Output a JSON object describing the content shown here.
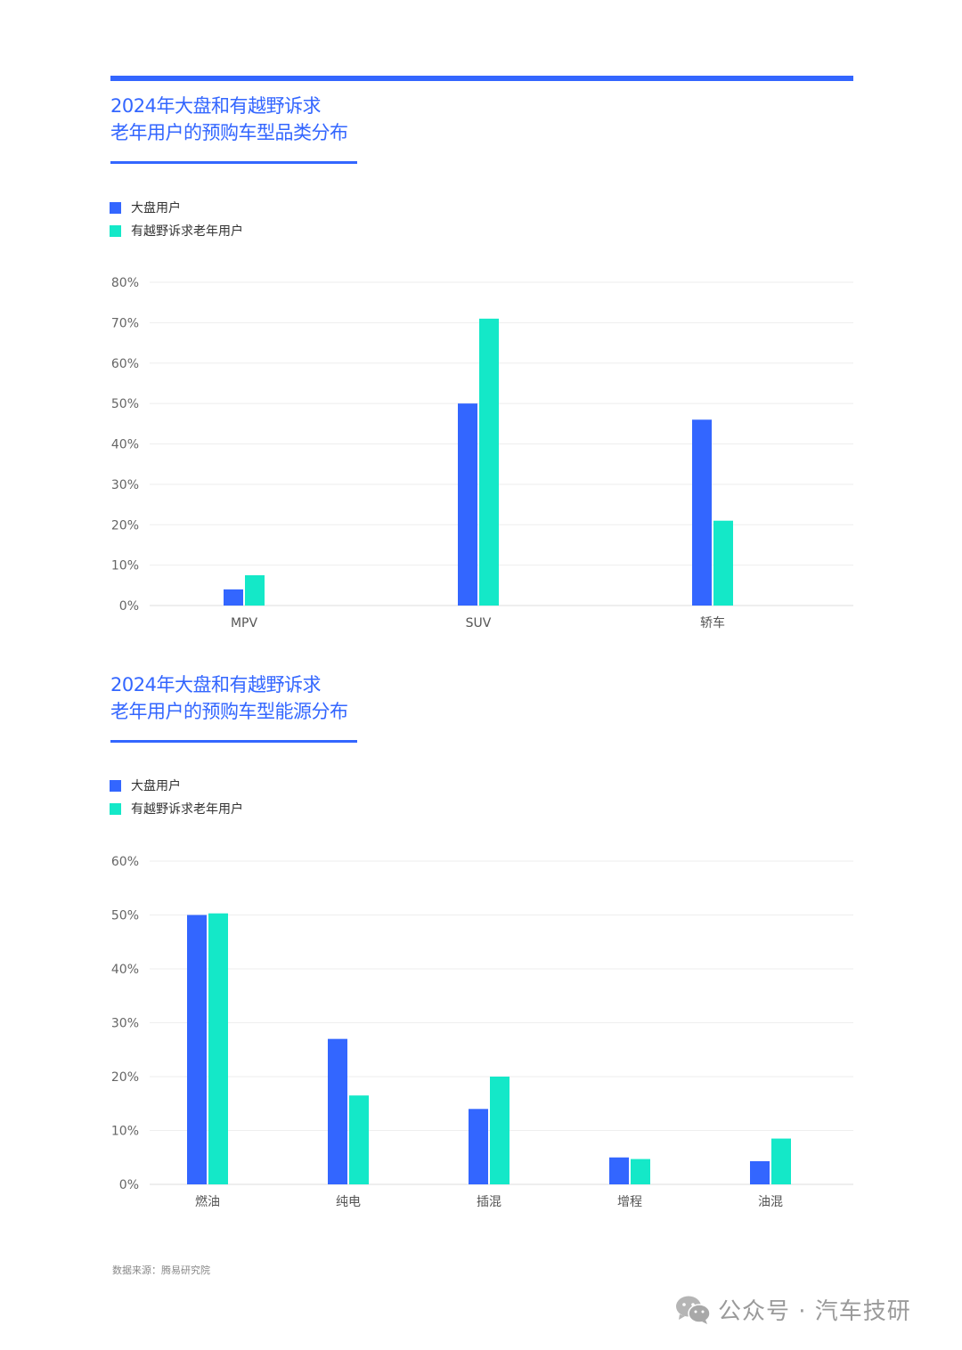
{
  "colors": {
    "accent": "#3366ff",
    "series1": "#3366ff",
    "series2": "#14e8c8"
  },
  "charts": [
    {
      "title_line1": "2024年大盘和有越野诉求",
      "title_line2": "老年用户的预购车型品类分布",
      "legend": [
        "大盘用户",
        "有越野诉求老年用户"
      ]
    },
    {
      "title_line1": "2024年大盘和有越野诉求",
      "title_line2": "老年用户的预购车型能源分布",
      "legend": [
        "大盘用户",
        "有越野诉求老年用户"
      ]
    }
  ],
  "chart_data": [
    {
      "type": "bar",
      "title": "2024年大盘和有越野诉求老年用户的预购车型品类分布",
      "categories": [
        "MPV",
        "SUV",
        "轿车"
      ],
      "series": [
        {
          "name": "大盘用户",
          "values": [
            4,
            50,
            46
          ],
          "color": "#3366ff"
        },
        {
          "name": "有越野诉求老年用户",
          "values": [
            7.5,
            71,
            21
          ],
          "color": "#14e8c8"
        }
      ],
      "ylim": [
        0,
        80
      ],
      "yticks": [
        "0%",
        "10%",
        "20%",
        "30%",
        "40%",
        "50%",
        "60%",
        "70%",
        "80%"
      ],
      "grid": true,
      "legend_position": "top-left"
    },
    {
      "type": "bar",
      "title": "2024年大盘和有越野诉求老年用户的预购车型能源分布",
      "categories": [
        "燃油",
        "纯电",
        "插混",
        "增程",
        "油混"
      ],
      "series": [
        {
          "name": "大盘用户",
          "values": [
            50,
            27,
            14,
            5,
            4.3
          ],
          "color": "#3366ff"
        },
        {
          "name": "有越野诉求老年用户",
          "values": [
            50.3,
            16.5,
            20,
            4.7,
            8.5
          ],
          "color": "#14e8c8"
        }
      ],
      "ylim": [
        0,
        60
      ],
      "yticks": [
        "0%",
        "10%",
        "20%",
        "30%",
        "40%",
        "50%",
        "60%"
      ],
      "grid": true,
      "legend_position": "top-left"
    }
  ],
  "source_note": "数据来源：腾易研究院",
  "watermark": {
    "icon": "wechat-icon",
    "text": "公众号 · 汽车技研"
  }
}
